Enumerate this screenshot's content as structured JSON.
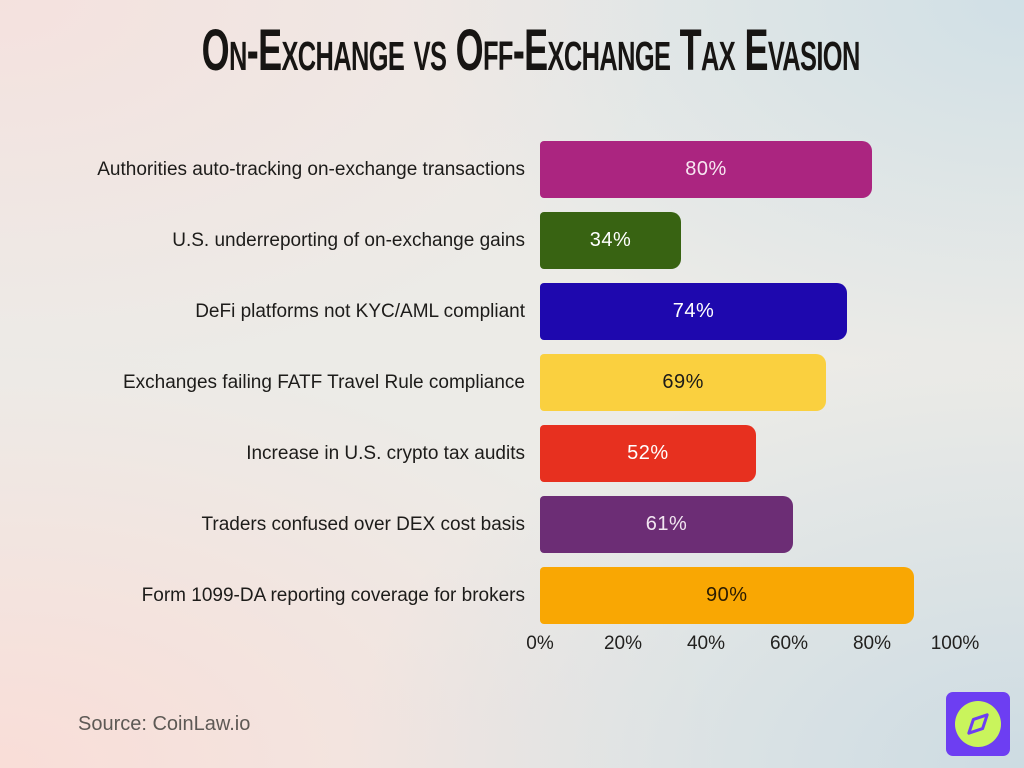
{
  "header": {
    "title": "On-Exchange vs Off-Exchange Tax Evasion"
  },
  "chart_data": {
    "type": "bar",
    "orientation": "horizontal",
    "title": "On-Exchange vs Off-Exchange Tax Evasion",
    "categories": [
      "Authorities auto-tracking on-exchange transactions",
      "U.S. underreporting of on-exchange gains",
      "DeFi platforms not KYC/AML compliant",
      "Exchanges failing FATF Travel Rule compliance",
      "Increase in U.S. crypto tax audits",
      "Traders confused over DEX cost basis",
      "Form 1099-DA reporting coverage for brokers"
    ],
    "values": [
      80,
      34,
      74,
      69,
      52,
      61,
      90
    ],
    "value_labels": [
      "80%",
      "34%",
      "74%",
      "69%",
      "52%",
      "61%",
      "90%"
    ],
    "bar_colors": [
      "#ab2580",
      "#386312",
      "#1e08ae",
      "#fad03f",
      "#e7301f",
      "#6c2d75",
      "#f9a703"
    ],
    "value_text_colors": [
      "#f7e6f1",
      "#ffffff",
      "#ffffff",
      "#1c1b18",
      "#ffffff",
      "#f2e6f1",
      "#2a1b02"
    ],
    "xlabel": "",
    "ylabel": "",
    "xlim": [
      0,
      100
    ],
    "x_tick_labels": [
      "0%",
      "20%",
      "40%",
      "60%",
      "80%",
      "100%"
    ],
    "grid": false,
    "legend": false
  },
  "footer": {
    "source": "Source: CoinLaw.io"
  },
  "logo": {
    "name": "coinlaw-compass-logo",
    "background": "#6d3ef2",
    "accent": "#c9f45c"
  }
}
